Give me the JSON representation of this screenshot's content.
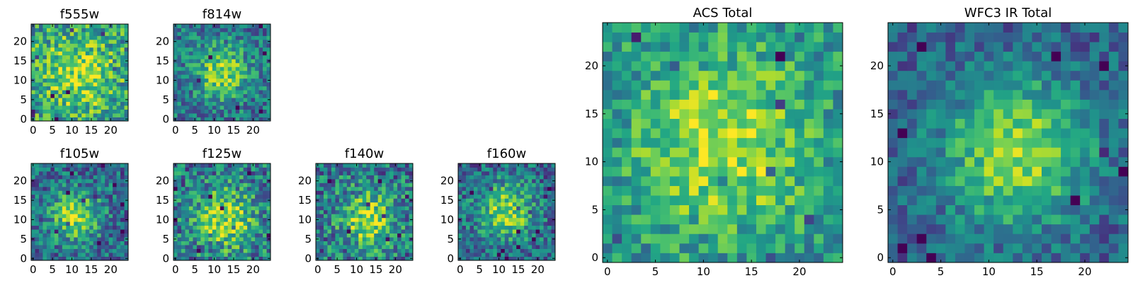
{
  "chart_data": [
    {
      "type": "heatmap",
      "title": "f555w",
      "seed": 101,
      "peak": [
        12,
        12
      ],
      "sigma": 6.5,
      "amp": 0.35,
      "base": 0.55,
      "noise": 0.3,
      "xticks": [
        0,
        5,
        10,
        15,
        20
      ],
      "yticks": [
        0,
        5,
        10,
        15,
        20
      ],
      "xlim": [
        0,
        24
      ],
      "ylim": [
        0,
        24
      ],
      "colormap": "viridis"
    },
    {
      "type": "heatmap",
      "title": "f814w",
      "seed": 202,
      "peak": [
        12,
        12
      ],
      "sigma": 4.5,
      "amp": 0.45,
      "base": 0.4,
      "noise": 0.25,
      "xticks": [
        0,
        5,
        10,
        15,
        20
      ],
      "yticks": [
        0,
        5,
        10,
        15,
        20
      ],
      "xlim": [
        0,
        24
      ],
      "ylim": [
        0,
        24
      ],
      "colormap": "viridis"
    },
    {
      "type": "heatmap",
      "title": "f105w",
      "seed": 303,
      "peak": [
        11,
        11
      ],
      "sigma": 4.5,
      "amp": 0.5,
      "base": 0.35,
      "noise": 0.25,
      "xticks": [
        0,
        5,
        10,
        15,
        20
      ],
      "yticks": [
        0,
        5,
        10,
        15,
        20
      ],
      "xlim": [
        0,
        24
      ],
      "ylim": [
        0,
        24
      ],
      "colormap": "viridis"
    },
    {
      "type": "heatmap",
      "title": "f125w",
      "seed": 404,
      "peak": [
        13,
        10
      ],
      "sigma": 5.5,
      "amp": 0.45,
      "base": 0.4,
      "noise": 0.3,
      "xticks": [
        0,
        5,
        10,
        15,
        20
      ],
      "yticks": [
        0,
        5,
        10,
        15,
        20
      ],
      "xlim": [
        0,
        24
      ],
      "ylim": [
        0,
        24
      ],
      "colormap": "viridis"
    },
    {
      "type": "heatmap",
      "title": "f140w",
      "seed": 505,
      "peak": [
        13,
        10
      ],
      "sigma": 5.0,
      "amp": 0.45,
      "base": 0.4,
      "noise": 0.3,
      "xticks": [
        0,
        5,
        10,
        15,
        20
      ],
      "yticks": [
        0,
        5,
        10,
        15,
        20
      ],
      "xlim": [
        0,
        24
      ],
      "ylim": [
        0,
        24
      ],
      "colormap": "viridis"
    },
    {
      "type": "heatmap",
      "title": "f160w",
      "seed": 606,
      "peak": [
        12,
        12
      ],
      "sigma": 5.0,
      "amp": 0.5,
      "base": 0.35,
      "noise": 0.25,
      "xticks": [
        0,
        5,
        10,
        15,
        20
      ],
      "yticks": [
        0,
        5,
        10,
        15,
        20
      ],
      "xlim": [
        0,
        24
      ],
      "ylim": [
        0,
        24
      ],
      "colormap": "viridis"
    },
    {
      "type": "heatmap",
      "title": "ACS Total",
      "seed": 707,
      "peak": [
        12,
        12
      ],
      "sigma": 6.5,
      "amp": 0.4,
      "base": 0.5,
      "noise": 0.22,
      "xticks": [
        0,
        5,
        10,
        15,
        20
      ],
      "yticks": [
        0,
        5,
        10,
        15,
        20
      ],
      "xlim": [
        0,
        24
      ],
      "ylim": [
        0,
        24
      ],
      "colormap": "viridis"
    },
    {
      "type": "heatmap",
      "title": "WFC3 IR Total",
      "seed": 808,
      "peak": [
        13,
        11
      ],
      "sigma": 5.5,
      "amp": 0.55,
      "base": 0.3,
      "noise": 0.18,
      "xticks": [
        0,
        5,
        10,
        15,
        20
      ],
      "yticks": [
        0,
        5,
        10,
        15,
        20
      ],
      "xlim": [
        0,
        24
      ],
      "ylim": [
        0,
        24
      ],
      "colormap": "viridis"
    }
  ]
}
